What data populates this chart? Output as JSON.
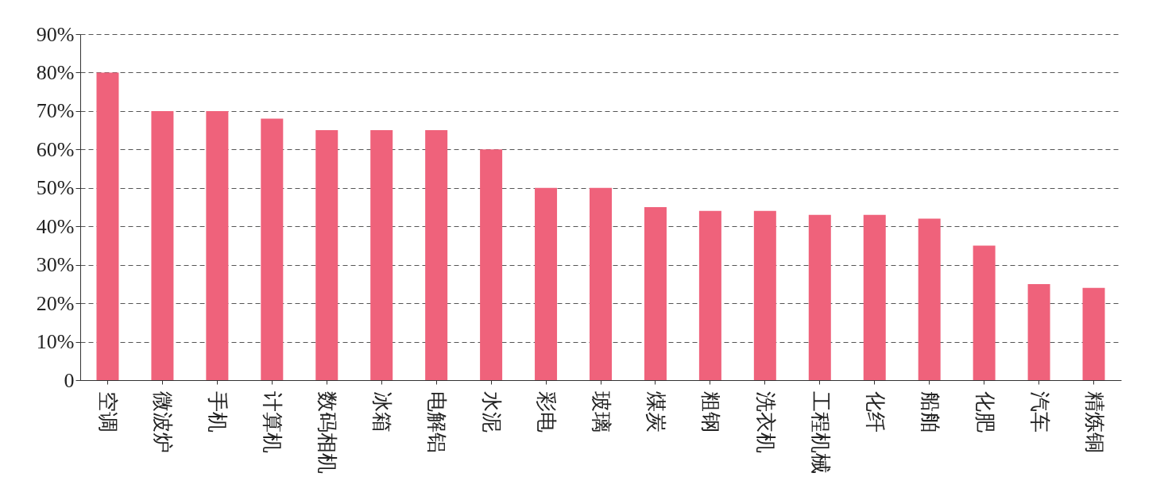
{
  "chart_data": {
    "type": "bar",
    "categories": [
      "空调",
      "微波炉",
      "手机",
      "计算机",
      "数码相机",
      "冰箱",
      "电解铝",
      "水泥",
      "彩电",
      "玻璃",
      "煤炭",
      "粗钢",
      "洗衣机",
      "工程机械",
      "化纤",
      "船舶",
      "化肥",
      "汽车",
      "精炼铜"
    ],
    "values": [
      80,
      70,
      70,
      68,
      65,
      65,
      65,
      60,
      50,
      50,
      45,
      44,
      44,
      43,
      43,
      42,
      35,
      25,
      24
    ],
    "color": "#ef627b",
    "ylim": [
      0,
      90
    ],
    "yticks": [
      0,
      {
        "value": 10,
        "label": "10%"
      },
      {
        "value": 20,
        "label": "20%"
      },
      {
        "value": 30,
        "label": "30%"
      },
      {
        "value": 40,
        "label": "40%"
      },
      {
        "value": 50,
        "label": "50%"
      },
      {
        "value": 60,
        "label": "60%"
      },
      {
        "value": 70,
        "label": "70%"
      },
      {
        "value": 80,
        "label": "80%"
      },
      {
        "value": 90,
        "label": "90%"
      }
    ],
    "grid": "y"
  }
}
